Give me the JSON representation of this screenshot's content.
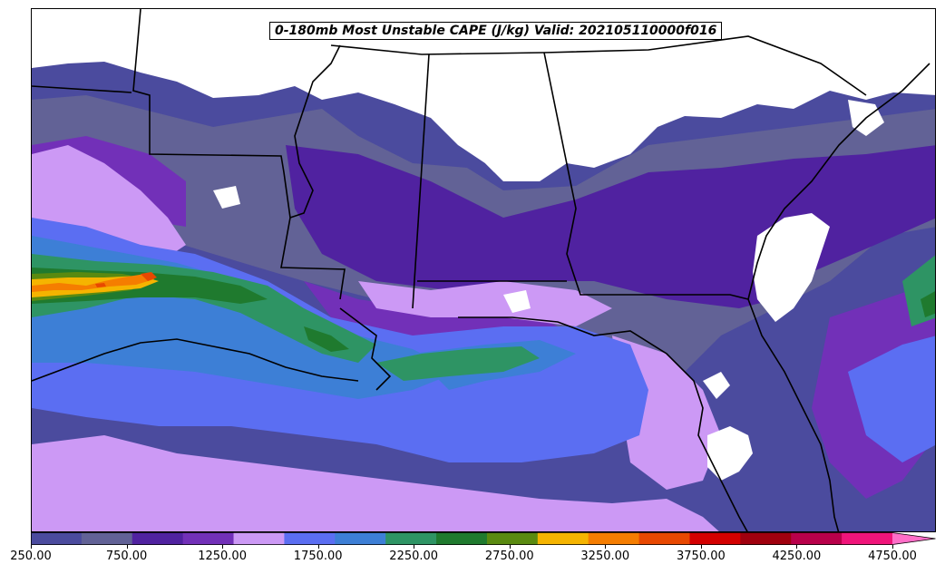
{
  "title": "0-180mb Most Unstable CAPE (J/kg) Valid: 202105110000f016",
  "colorbar": {
    "colors": [
      "#4b4b9e",
      "#626296",
      "#5022a0",
      "#7230b8",
      "#cc99f5",
      "#5b6ef2",
      "#3d7fd6",
      "#2e9464",
      "#1f7a2e",
      "#5a8a10",
      "#f5b400",
      "#f57d00",
      "#e84800",
      "#d40000",
      "#a0000e",
      "#b8004a",
      "#f0147a",
      "#ff6ec8"
    ],
    "tick_labels": [
      "250.00",
      "750.00",
      "1250.00",
      "1750.00",
      "2250.00",
      "2750.00",
      "3250.00",
      "3750.00",
      "4250.00",
      "4750.00"
    ],
    "min": 250,
    "max": 4750,
    "extend": "max"
  }
}
